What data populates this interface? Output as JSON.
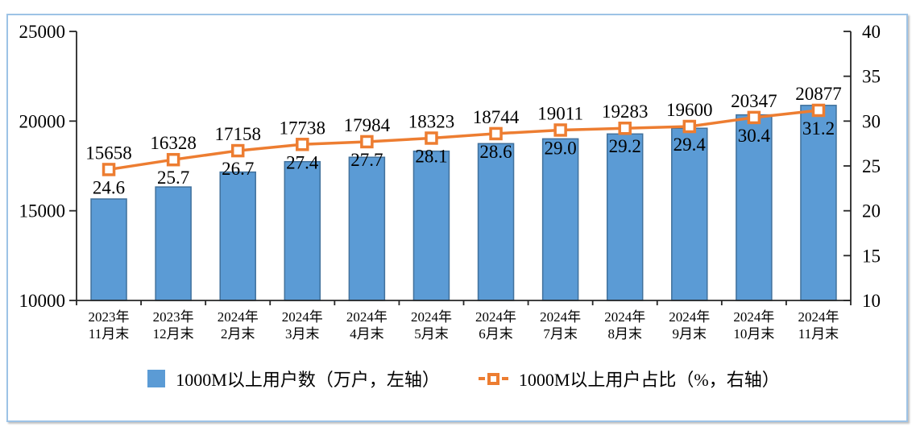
{
  "chart_data": {
    "type": "combo-bar-line",
    "title": "",
    "grid": false,
    "legend_position": "bottom",
    "categories": [
      {
        "line1": "2023年",
        "line2": "11月末"
      },
      {
        "line1": "2023年",
        "line2": "12月末"
      },
      {
        "line1": "2024年",
        "line2": "2月末"
      },
      {
        "line1": "2024年",
        "line2": "3月末"
      },
      {
        "line1": "2024年",
        "line2": "4月末"
      },
      {
        "line1": "2024年",
        "line2": "5月末"
      },
      {
        "line1": "2024年",
        "line2": "6月末"
      },
      {
        "line1": "2024年",
        "line2": "7月末"
      },
      {
        "line1": "2024年",
        "line2": "8月末"
      },
      {
        "line1": "2024年",
        "line2": "9月末"
      },
      {
        "line1": "2024年",
        "line2": "10月末"
      },
      {
        "line1": "2024年",
        "line2": "11月末"
      }
    ],
    "series": [
      {
        "name": "1000M以上用户数（万户，左轴）",
        "type": "bar",
        "axis": "left",
        "values": [
          15658,
          16328,
          17158,
          17738,
          17984,
          18323,
          18744,
          19011,
          19283,
          19600,
          20347,
          20877
        ],
        "labels": [
          "15658",
          "16328",
          "17158",
          "17738",
          "17984",
          "18323",
          "18744",
          "19011",
          "19283",
          "19600",
          "20347",
          "20877"
        ],
        "fill": "#5B9BD5",
        "stroke": "#41719C"
      },
      {
        "name": "1000M以上用户占比（%，右轴）",
        "type": "line",
        "axis": "right",
        "values": [
          24.6,
          25.7,
          26.7,
          27.4,
          27.7,
          28.1,
          28.6,
          29.0,
          29.2,
          29.4,
          30.4,
          31.2
        ],
        "labels": [
          "24.6",
          "25.7",
          "26.7",
          "27.4",
          "27.7",
          "28.1",
          "28.6",
          "29.0",
          "29.2",
          "29.4",
          "30.4",
          "31.2"
        ],
        "color": "#ED7D31",
        "marker": "hollow-square"
      }
    ],
    "left_axis": {
      "min": 10000,
      "max": 25000,
      "ticks": [
        10000,
        15000,
        20000,
        25000
      ],
      "tick_labels": [
        "10000",
        "15000",
        "20000",
        "25000"
      ]
    },
    "right_axis": {
      "min": 10,
      "max": 40,
      "ticks": [
        10,
        15,
        20,
        25,
        30,
        35,
        40
      ],
      "tick_labels": [
        "10",
        "15",
        "20",
        "25",
        "30",
        "35",
        "40"
      ]
    },
    "colors": {
      "axis": "#262626",
      "text": "#000000",
      "frame": "#9DC3E6"
    }
  }
}
